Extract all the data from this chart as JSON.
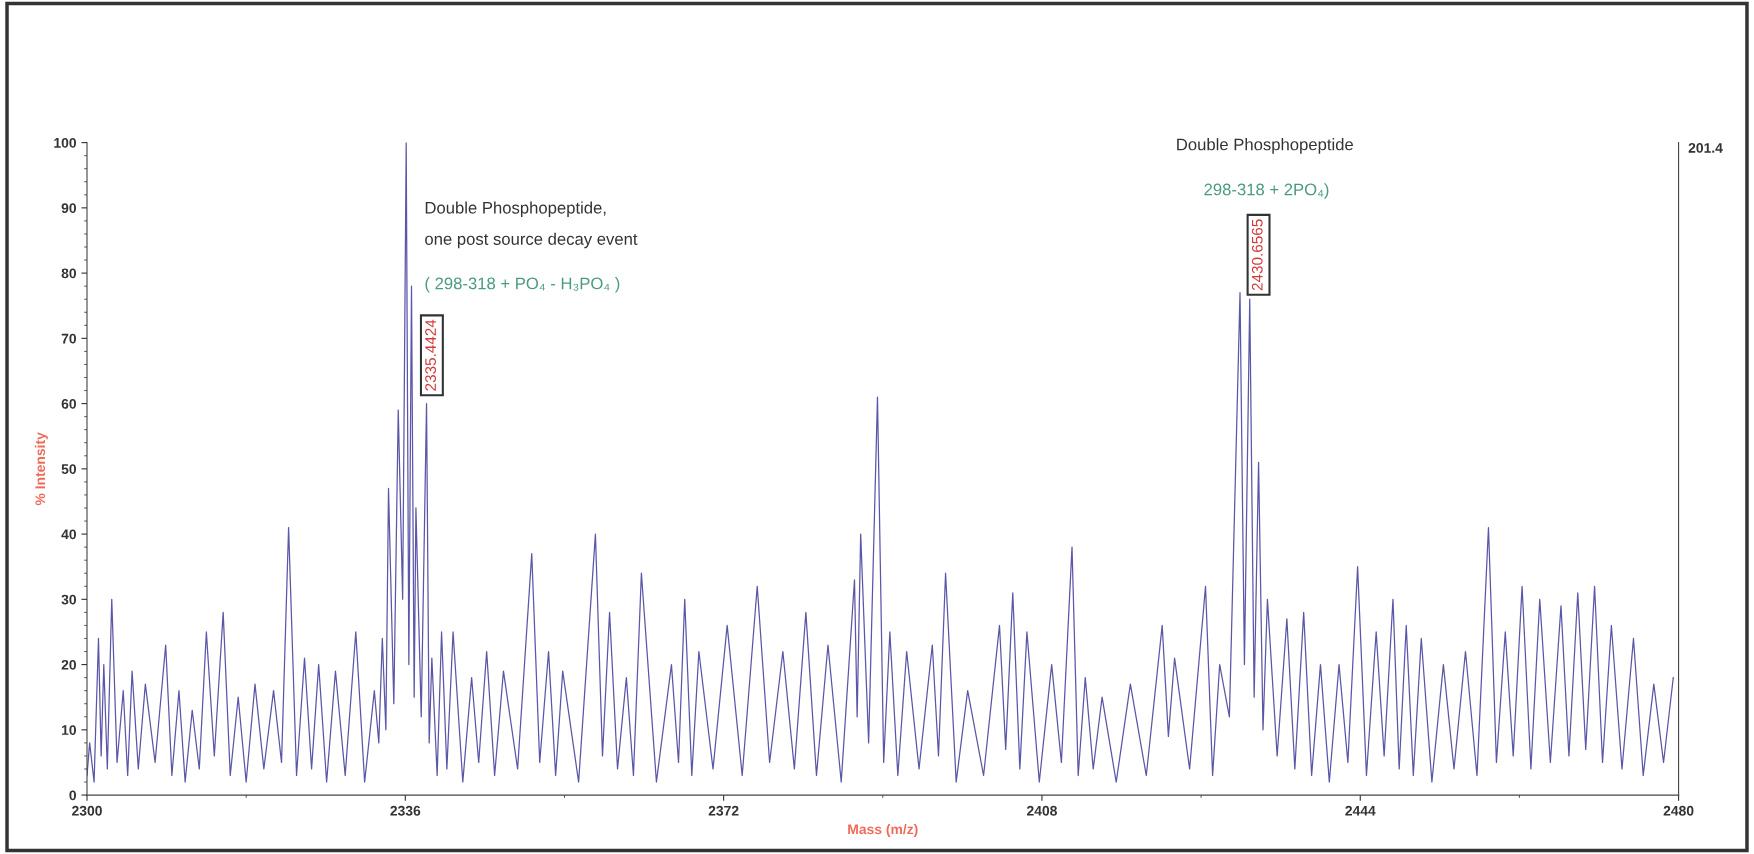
{
  "chart_data": {
    "type": "line",
    "xlabel": "Mass (m/z)",
    "ylabel": "% Intensity",
    "xlim": [
      2300,
      2480
    ],
    "xticks": [
      2300,
      2336,
      2372,
      2408,
      2444,
      2480
    ],
    "ylim": [
      0,
      100
    ],
    "yticks": [
      0,
      10,
      20,
      30,
      40,
      50,
      60,
      70,
      80,
      90,
      100
    ],
    "grid": false,
    "legend": false,
    "series": [
      {
        "color": "#5a56a8",
        "x": [
          2300.0,
          2300.3,
          2300.8,
          2301.3,
          2301.6,
          2301.9,
          2302.3,
          2302.8,
          2303.4,
          2304.1,
          2304.6,
          2305.1,
          2305.8,
          2306.6,
          2307.7,
          2308.9,
          2309.6,
          2310.4,
          2311.1,
          2311.9,
          2312.7,
          2313.5,
          2314.4,
          2315.4,
          2316.2,
          2317.1,
          2318.0,
          2319.0,
          2320.0,
          2321.1,
          2322.0,
          2322.8,
          2323.7,
          2324.6,
          2325.4,
          2326.2,
          2327.1,
          2328.1,
          2329.2,
          2330.4,
          2331.4,
          2332.5,
          2333.0,
          2333.4,
          2333.8,
          2334.1,
          2334.7,
          2335.2,
          2335.7,
          2336.1,
          2336.4,
          2336.7,
          2337.0,
          2337.2,
          2337.8,
          2338.4,
          2338.7,
          2339.0,
          2339.6,
          2340.1,
          2340.7,
          2341.4,
          2342.5,
          2343.5,
          2344.3,
          2345.2,
          2346.1,
          2347.1,
          2348.7,
          2350.3,
          2351.2,
          2352.2,
          2353.0,
          2353.8,
          2355.6,
          2357.5,
          2358.3,
          2359.1,
          2360.0,
          2361.0,
          2361.8,
          2362.7,
          2364.4,
          2366.1,
          2366.9,
          2367.6,
          2368.4,
          2369.2,
          2370.8,
          2372.4,
          2374.1,
          2375.8,
          2377.2,
          2378.7,
          2380.0,
          2381.3,
          2382.5,
          2383.8,
          2385.3,
          2386.8,
          2387.1,
          2387.5,
          2388.4,
          2389.4,
          2390.1,
          2390.8,
          2391.7,
          2392.7,
          2394.1,
          2395.6,
          2396.3,
          2397.1,
          2398.3,
          2399.6,
          2401.4,
          2403.2,
          2403.9,
          2404.7,
          2405.5,
          2406.3,
          2407.7,
          2409.1,
          2410.2,
          2411.4,
          2412.1,
          2412.9,
          2413.8,
          2414.8,
          2416.4,
          2418.0,
          2419.8,
          2421.6,
          2422.3,
          2423.0,
          2424.7,
          2426.5,
          2427.3,
          2428.1,
          2429.2,
          2430.4,
          2430.9,
          2431.5,
          2432.0,
          2432.5,
          2433.0,
          2433.5,
          2434.6,
          2435.7,
          2436.6,
          2437.6,
          2438.5,
          2439.5,
          2440.5,
          2441.6,
          2442.6,
          2443.7,
          2444.7,
          2445.8,
          2446.7,
          2447.7,
          2448.4,
          2449.2,
          2450.0,
          2450.9,
          2452.1,
          2453.4,
          2454.6,
          2455.9,
          2457.2,
          2458.5,
          2459.4,
          2460.4,
          2461.3,
          2462.3,
          2463.3,
          2464.3,
          2465.5,
          2466.7,
          2467.6,
          2468.6,
          2469.5,
          2470.5,
          2471.4,
          2472.4,
          2473.6,
          2474.9,
          2476.0,
          2477.2,
          2478.3,
          2479.4
        ],
        "values": [
          3,
          8,
          2,
          24,
          6,
          20,
          4,
          30,
          5,
          16,
          3,
          19,
          4,
          17,
          5,
          23,
          3,
          16,
          2,
          13,
          4,
          25,
          6,
          28,
          3,
          15,
          2,
          17,
          4,
          16,
          5,
          41,
          3,
          21,
          4,
          20,
          2,
          19,
          3,
          25,
          2,
          16,
          8,
          24,
          10,
          47,
          14,
          59,
          30,
          100,
          20,
          78,
          15,
          44,
          12,
          60,
          8,
          21,
          3,
          25,
          4,
          25,
          2,
          18,
          5,
          22,
          3,
          19,
          4,
          37,
          5,
          22,
          3,
          19,
          2,
          40,
          6,
          28,
          4,
          18,
          3,
          34,
          2,
          20,
          5,
          30,
          3,
          22,
          4,
          26,
          3,
          32,
          5,
          22,
          4,
          28,
          3,
          23,
          2,
          33,
          12,
          40,
          8,
          61,
          5,
          25,
          3,
          22,
          4,
          23,
          6,
          34,
          2,
          16,
          3,
          26,
          7,
          31,
          4,
          25,
          2,
          20,
          5,
          38,
          3,
          18,
          4,
          15,
          2,
          17,
          3,
          26,
          9,
          21,
          4,
          32,
          3,
          20,
          12,
          77,
          20,
          76,
          15,
          51,
          10,
          30,
          6,
          27,
          4,
          28,
          3,
          20,
          2,
          20,
          5,
          35,
          3,
          25,
          6,
          30,
          4,
          26,
          3,
          24,
          2,
          20,
          4,
          22,
          3,
          41,
          5,
          25,
          6,
          32,
          4,
          30,
          5,
          29,
          6,
          31,
          7,
          32,
          5,
          26,
          4,
          24,
          3,
          17,
          5,
          18
        ]
      }
    ],
    "annotations": [
      "Double Phosphopeptide,\none post source decay event",
      "( 298-318 + PO₄ - H₃PO₄ )",
      "2335.4424",
      "Double Phosphopeptide",
      "298-318 + 2PO₄)",
      "2430.6565",
      "201.4"
    ]
  }
}
